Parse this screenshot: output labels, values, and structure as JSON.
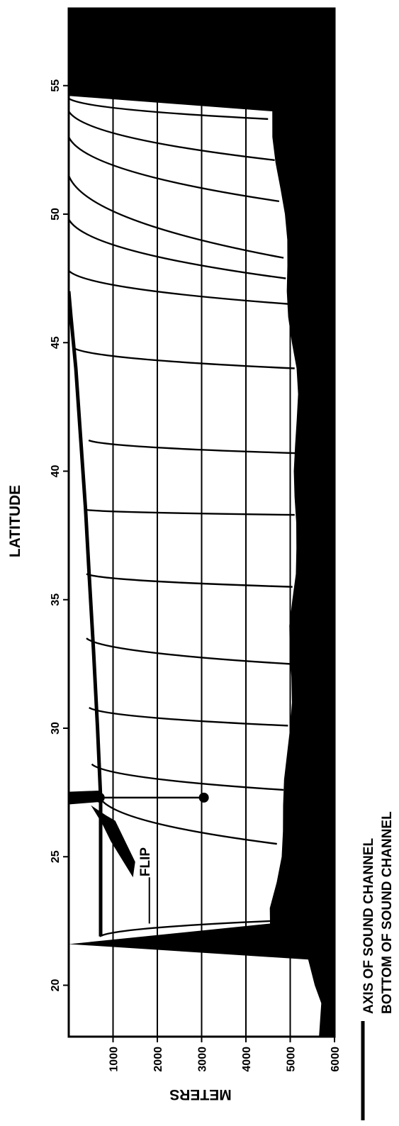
{
  "chart_data": {
    "type": "line",
    "title": "",
    "xlabel": "LATITUDE",
    "ylabel": "METERS",
    "x_ticks": [
      "20",
      "25",
      "30",
      "35",
      "40",
      "45",
      "50",
      "55"
    ],
    "y_ticks": [
      "1000",
      "2000",
      "3000",
      "4000",
      "5000",
      "6000"
    ],
    "xlim": [
      18,
      58
    ],
    "ylim": [
      0,
      6000
    ],
    "grid": true,
    "legend_placement": "bottom",
    "annotation": "FLIP",
    "legend": [
      {
        "name": "AXIS OF SOUND CHANNEL",
        "style": "thick-line"
      },
      {
        "name": "BOTTOM OF SOUND CHANNEL",
        "style": "thin-line"
      }
    ],
    "axis_of_sound_channel": {
      "x": [
        21.9,
        25,
        27.3,
        30,
        33,
        36,
        38.5,
        41,
        44,
        46,
        47
      ],
      "y": [
        720,
        720,
        720,
        650,
        560,
        460,
        380,
        280,
        160,
        50,
        0
      ]
    },
    "ray_curves": {
      "x_start": [
        21.9,
        27.3,
        28.6,
        30.8,
        33.5,
        36,
        38.5,
        41.2,
        44.8,
        47.8,
        49.8,
        51.5,
        53,
        54,
        54.5
      ],
      "y_start": [
        700,
        700,
        520,
        460,
        400,
        400,
        380,
        450,
        100,
        0,
        0,
        0,
        0,
        0,
        0
      ],
      "x_end": [
        22.5,
        25.5,
        27.6,
        30.1,
        32.5,
        35.5,
        38.3,
        40.7,
        44,
        46.5,
        47.5,
        48.3,
        50.5,
        52.1,
        53.7
      ],
      "y_end": [
        4600,
        4700,
        4850,
        4950,
        5000,
        5050,
        5100,
        5150,
        5100,
        5000,
        4900,
        4850,
        4750,
        4650,
        4500
      ]
    },
    "flip_instrument": {
      "lat": 27.3,
      "depth_top": 700,
      "depth_bottom": 3050
    },
    "bottom_profile": {
      "lat": [
        18,
        19.3,
        20,
        21,
        21.6,
        22.4,
        23,
        24,
        25,
        26,
        27,
        28,
        29,
        30,
        31,
        32,
        33,
        34,
        35,
        36,
        37,
        38,
        39,
        40,
        41,
        42,
        43,
        44,
        45,
        46,
        47,
        48,
        49,
        50,
        51,
        52,
        53,
        54,
        54.6,
        55.5,
        57,
        58
      ],
      "depth": [
        5650,
        5650,
        5500,
        5400,
        0,
        4600,
        4550,
        4650,
        4750,
        4820,
        4880,
        4920,
        4950,
        4960,
        4980,
        5000,
        5020,
        5040,
        5080,
        5100,
        5080,
        5100,
        5120,
        5140,
        5150,
        5130,
        5120,
        5100,
        5050,
        5010,
        4970,
        4930,
        4880,
        4830,
        4780,
        4720,
        4650,
        4600,
        0,
        0,
        0,
        0
      ]
    },
    "colors": {
      "ink": "#000000",
      "paper": "#ffffff"
    }
  }
}
